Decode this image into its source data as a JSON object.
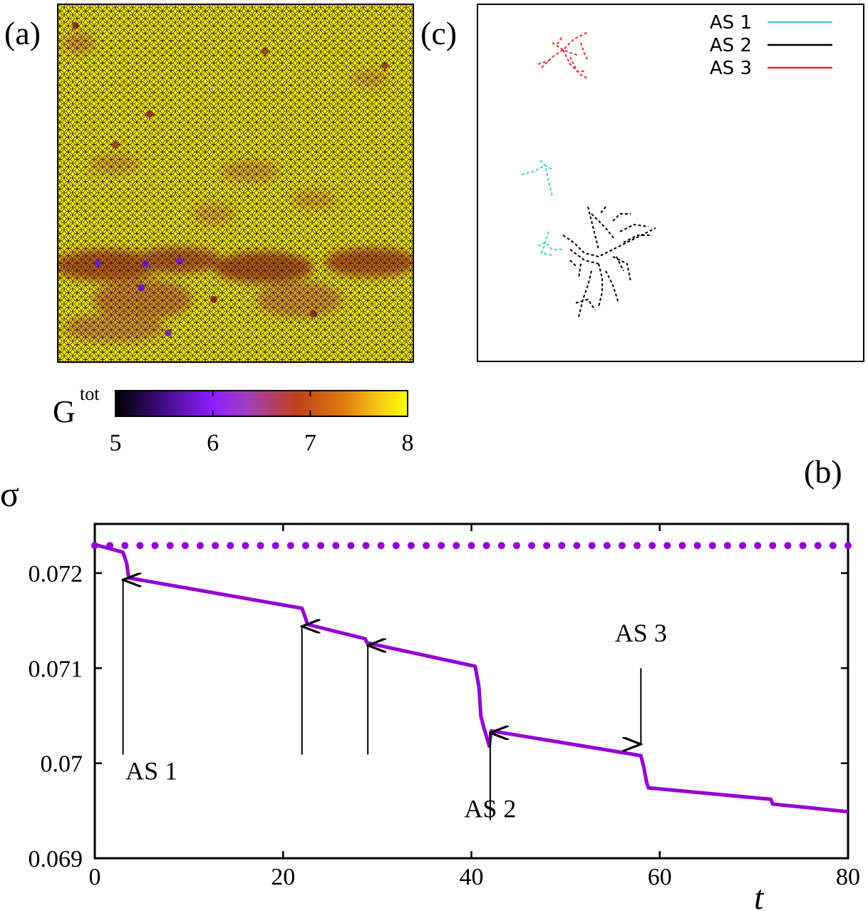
{
  "panel_a": {
    "label": "(a)",
    "colorbar": {
      "label_main": "G",
      "label_sup": "tot",
      "min": 5,
      "max": 8,
      "ticks": [
        "5",
        "6",
        "7",
        "8"
      ],
      "colors": [
        "#000000",
        "#3a0a7a",
        "#8c1cff",
        "#a23ec0",
        "#c0401a",
        "#e07a10",
        "#f5c816",
        "#ffff00"
      ]
    }
  },
  "panel_b": {
    "label": "(b)"
  },
  "panel_c": {
    "label": "(c)",
    "legend": [
      {
        "name": "AS 1",
        "color": "#40d0d0"
      },
      {
        "name": "AS 2",
        "color": "#000000"
      },
      {
        "name": "AS 3",
        "color": "#e03030"
      }
    ]
  },
  "chart_data": {
    "type": "line",
    "xlabel": "t",
    "ylabel": "σ",
    "xlim": [
      0,
      80
    ],
    "ylim": [
      0.069,
      0.0725
    ],
    "xticks": [
      "0",
      "20",
      "40",
      "60",
      "80"
    ],
    "yticks": [
      "0.069",
      "0.07",
      "0.071",
      "0.072"
    ],
    "color": "#9400d3",
    "series": [
      {
        "name": "reference (dotted)",
        "style": "dots",
        "x_start": 0,
        "x_end": 80,
        "x_step": 1.6,
        "y": 0.07229
      },
      {
        "name": "stress",
        "style": "line",
        "x": [
          0,
          3.0,
          3.4,
          3.6,
          22.0,
          22.3,
          22.6,
          28.7,
          28.9,
          29.2,
          40.4,
          40.8,
          41.0,
          41.3,
          41.9,
          42.1,
          58.0,
          58.3,
          58.6,
          58.8,
          71.8,
          72.0,
          80
        ],
        "y": [
          0.0723,
          0.07222,
          0.0721,
          0.07195,
          0.07163,
          0.07155,
          0.07146,
          0.07131,
          0.07127,
          0.07126,
          0.07102,
          0.0708,
          0.0705,
          0.07038,
          0.07018,
          0.07034,
          0.07008,
          0.06996,
          0.0698,
          0.06974,
          0.06962,
          0.06957,
          0.06949
        ]
      }
    ],
    "annotations": [
      {
        "text": "AS 1",
        "x": 3.0,
        "y": 0.06983,
        "arrow": "up",
        "from": 0.07009,
        "to": 0.07193
      },
      {
        "text": "",
        "x": 22.0,
        "y": null,
        "arrow": "up",
        "from": 0.07009,
        "to": 0.07144
      },
      {
        "text": "",
        "x": 29.0,
        "y": null,
        "arrow": "up",
        "from": 0.07009,
        "to": 0.07124
      },
      {
        "text": "AS 2",
        "x": 42.0,
        "y": 0.06943,
        "arrow": "up",
        "from": 0.0694,
        "to": 0.07032
      },
      {
        "text": "AS 3",
        "x": 58.0,
        "y": 0.07128,
        "arrow": "down",
        "from": 0.071,
        "to": 0.0702
      }
    ]
  }
}
